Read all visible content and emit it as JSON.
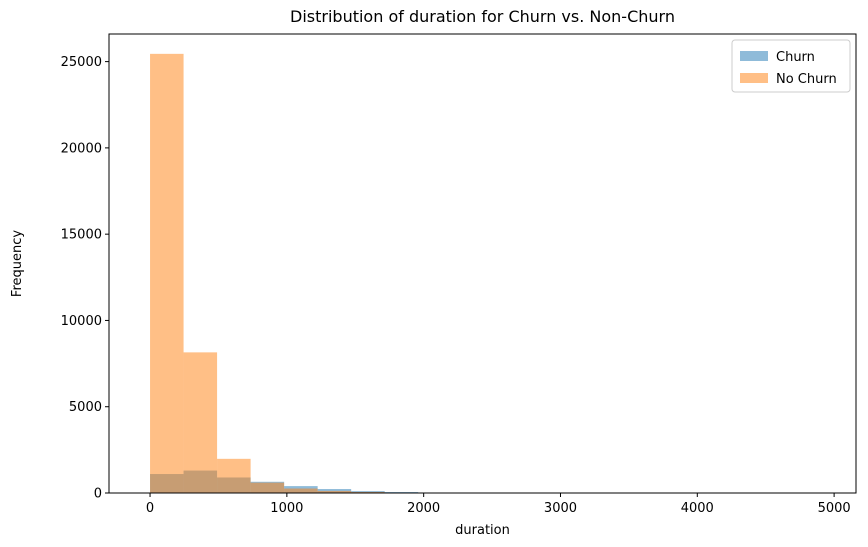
{
  "chart_data": {
    "type": "bar",
    "title": "Distribution of duration for Churn vs. Non-Churn",
    "xlabel": "duration",
    "ylabel": "Frequency",
    "xlim": [
      -300,
      5160
    ],
    "ylim": [
      0,
      26600
    ],
    "xticks": [
      0,
      1000,
      2000,
      3000,
      4000,
      5000
    ],
    "yticks": [
      0,
      5000,
      10000,
      15000,
      20000,
      25000
    ],
    "grid": false,
    "legend_position": "top-right",
    "series": [
      {
        "name": "Churn",
        "color": "#1f77b4",
        "opacity": 0.5,
        "bin_edges": [
          0,
          245,
          490,
          735,
          980,
          1225,
          1470,
          1715,
          1960,
          2205,
          2450,
          2695,
          2940,
          3185,
          3430,
          3675,
          3920,
          4165,
          4410,
          4655,
          4900
        ],
        "values": [
          1100,
          1300,
          900,
          650,
          400,
          230,
          110,
          55,
          25,
          10,
          5,
          3,
          2,
          1,
          1,
          0,
          0,
          0,
          0,
          1
        ]
      },
      {
        "name": "No Churn",
        "color": "#ff7f0e",
        "opacity": 0.5,
        "bin_edges": [
          0,
          245,
          490,
          735,
          980,
          1225,
          1470,
          1715,
          1960,
          2205,
          2450,
          2695,
          2940,
          3185,
          3430,
          3675,
          3920,
          4165,
          4410,
          4655,
          4900
        ],
        "values": [
          25450,
          8150,
          1980,
          600,
          260,
          120,
          60,
          25,
          12,
          6,
          3,
          2,
          1,
          1,
          0,
          0,
          0,
          0,
          0,
          1
        ]
      }
    ]
  }
}
